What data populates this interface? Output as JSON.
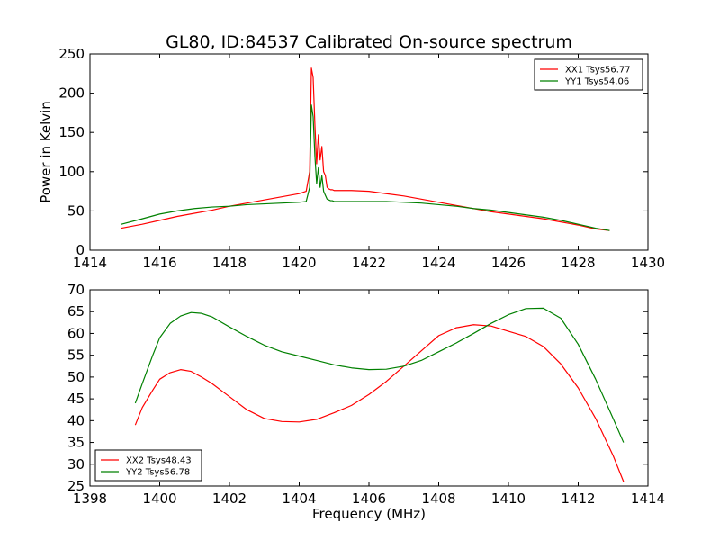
{
  "chart_data": [
    {
      "type": "line",
      "title": "GL80, ID:84537 Calibrated On-source spectrum",
      "xlabel": "",
      "ylabel": "Power in Kelvin",
      "xlim": [
        1414,
        1430
      ],
      "ylim": [
        0,
        250
      ],
      "xticks": [
        1414,
        1416,
        1418,
        1420,
        1422,
        1424,
        1426,
        1428,
        1430
      ],
      "yticks": [
        0,
        50,
        100,
        150,
        200,
        250
      ],
      "grid": false,
      "legend": "top-right",
      "series": [
        {
          "name": "XX1 Tsys56.77",
          "color": "#ff0000",
          "x": [
            1414.9,
            1415.5,
            1416,
            1416.5,
            1417,
            1417.5,
            1418,
            1418.5,
            1419,
            1419.5,
            1420,
            1420.2,
            1420.3,
            1420.35,
            1420.4,
            1420.45,
            1420.5,
            1420.55,
            1420.6,
            1420.65,
            1420.7,
            1420.75,
            1420.8,
            1420.85,
            1420.9,
            1420.95,
            1421,
            1421.5,
            1422,
            1422.5,
            1423,
            1423.5,
            1424,
            1424.5,
            1425,
            1425.5,
            1426,
            1426.5,
            1427,
            1427.5,
            1428,
            1428.5,
            1428.9
          ],
          "values": [
            28,
            33,
            38,
            43,
            47,
            51,
            56,
            60,
            64,
            68,
            72,
            75,
            100,
            232,
            220,
            160,
            110,
            147,
            115,
            132,
            100,
            95,
            80,
            78,
            77,
            77,
            76,
            76,
            75,
            72,
            69,
            65,
            61,
            57,
            53,
            49,
            46,
            43,
            40,
            36,
            32,
            27,
            25
          ]
        },
        {
          "name": "YY1 Tsys54.06",
          "color": "#008000",
          "x": [
            1414.9,
            1415.5,
            1416,
            1416.5,
            1417,
            1417.5,
            1418,
            1418.5,
            1419,
            1419.5,
            1420,
            1420.2,
            1420.3,
            1420.35,
            1420.4,
            1420.45,
            1420.5,
            1420.55,
            1420.6,
            1420.65,
            1420.7,
            1420.75,
            1420.8,
            1420.85,
            1420.9,
            1420.95,
            1421,
            1421.5,
            1422,
            1422.5,
            1423,
            1423.5,
            1424,
            1424.5,
            1425,
            1425.5,
            1426,
            1426.5,
            1427,
            1427.5,
            1428,
            1428.5,
            1428.9
          ],
          "values": [
            33,
            40,
            46,
            50,
            53,
            55,
            56,
            58,
            59,
            60,
            61,
            62,
            80,
            185,
            170,
            120,
            85,
            105,
            80,
            95,
            75,
            70,
            65,
            64,
            63,
            63,
            62,
            62,
            62,
            62,
            61,
            60,
            58,
            56,
            53,
            51,
            48,
            45,
            42,
            38,
            33,
            28,
            25
          ]
        }
      ]
    },
    {
      "type": "line",
      "title": "",
      "xlabel": "Frequency (MHz)",
      "ylabel": "",
      "xlim": [
        1398,
        1414
      ],
      "ylim": [
        25,
        70
      ],
      "xticks": [
        1398,
        1400,
        1402,
        1404,
        1406,
        1408,
        1410,
        1412,
        1414
      ],
      "yticks": [
        25,
        30,
        35,
        40,
        45,
        50,
        55,
        60,
        65,
        70
      ],
      "grid": false,
      "legend": "bottom-left",
      "series": [
        {
          "name": "XX2 Tsys48.43",
          "color": "#ff0000",
          "x": [
            1399.3,
            1399.5,
            1399.8,
            1400,
            1400.3,
            1400.6,
            1400.9,
            1401.2,
            1401.5,
            1402,
            1402.5,
            1403,
            1403.5,
            1404,
            1404.5,
            1405,
            1405.5,
            1406,
            1406.5,
            1407,
            1407.5,
            1408,
            1408.5,
            1409,
            1409.5,
            1410,
            1410.5,
            1411,
            1411.5,
            1412,
            1412.5,
            1413,
            1413.3
          ],
          "values": [
            39,
            43,
            47,
            49.5,
            51,
            51.7,
            51.3,
            50,
            48.5,
            45.5,
            42.5,
            40.5,
            39.8,
            39.7,
            40.3,
            41.8,
            43.5,
            46,
            49,
            52.5,
            56,
            59.5,
            61.3,
            62,
            61.7,
            60.5,
            59.3,
            57,
            53,
            47.5,
            40.5,
            32,
            26
          ]
        },
        {
          "name": "YY2 Tsys56.78",
          "color": "#008000",
          "x": [
            1399.3,
            1399.5,
            1399.8,
            1400,
            1400.3,
            1400.6,
            1400.9,
            1401.2,
            1401.5,
            1402,
            1402.5,
            1403,
            1403.5,
            1404,
            1404.5,
            1405,
            1405.5,
            1406,
            1406.5,
            1407,
            1407.5,
            1408,
            1408.5,
            1409,
            1409.5,
            1410,
            1410.5,
            1411,
            1411.5,
            1412,
            1412.5,
            1413,
            1413.3
          ],
          "values": [
            44,
            48.5,
            55,
            59,
            62.3,
            64,
            64.8,
            64.6,
            63.8,
            61.5,
            59.3,
            57.3,
            55.8,
            54.8,
            53.8,
            52.8,
            52.1,
            51.7,
            51.8,
            52.5,
            53.8,
            55.8,
            57.8,
            60,
            62.3,
            64.3,
            65.7,
            65.8,
            63.5,
            57.5,
            49.5,
            40.5,
            35
          ]
        }
      ]
    }
  ]
}
